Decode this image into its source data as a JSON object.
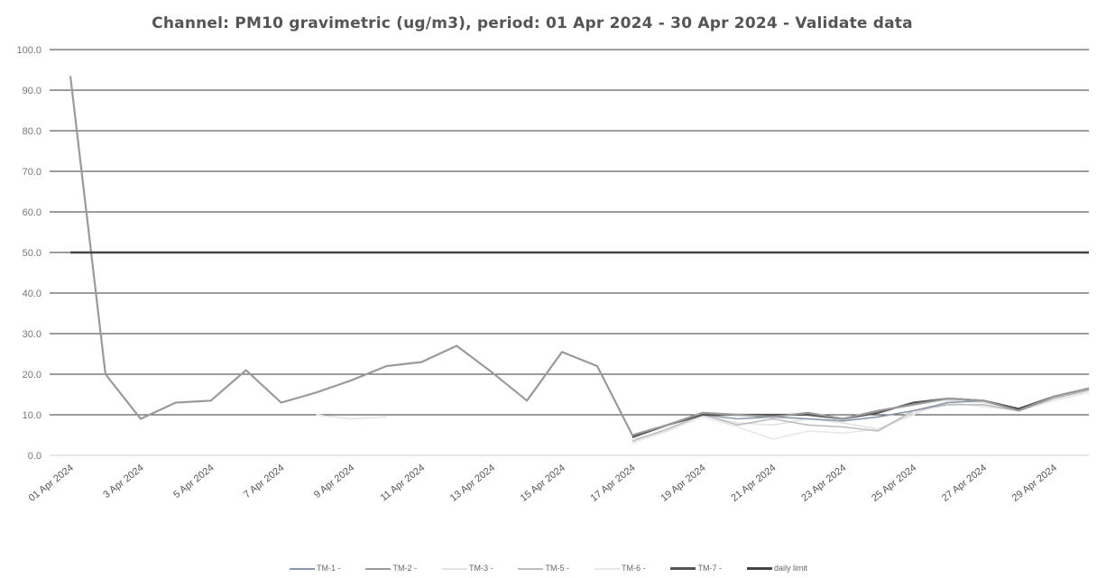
{
  "chart_data": {
    "type": "line",
    "title": "Channel: PM10 gravimetric (ug/m3), period: 01 Apr 2024 - 30 Apr 2024 - Validate data",
    "ylim": [
      0,
      100
    ],
    "yticks": [
      "0.0",
      "10.0",
      "20.0",
      "30.0",
      "40.0",
      "50.0",
      "60.0",
      "70.0",
      "80.0",
      "90.0",
      "100.0"
    ],
    "x": [
      "01 Apr 2024",
      "2 Apr 2024",
      "3 Apr 2024",
      "4 Apr 2024",
      "5 Apr 2024",
      "6 Apr 2024",
      "7 Apr 2024",
      "8 Apr 2024",
      "9 Apr 2024",
      "10 Apr 2024",
      "11 Apr 2024",
      "12 Apr 2024",
      "13 Apr 2024",
      "14 Apr 2024",
      "15 Apr 2024",
      "16 Apr 2024",
      "17 Apr 2024",
      "18 Apr 2024",
      "19 Apr 2024",
      "20 Apr 2024",
      "21 Apr 2024",
      "22 Apr 2024",
      "23 Apr 2024",
      "24 Apr 2024",
      "25 Apr 2024",
      "26 Apr 2024",
      "27 Apr 2024",
      "28 Apr 2024",
      "29 Apr 2024",
      "30 Apr 2024"
    ],
    "xtick_labels": [
      "01 Apr 2024",
      "3 Apr 2024",
      "5 Apr 2024",
      "7 Apr 2024",
      "9 Apr 2024",
      "11 Apr 2024",
      "13 Apr 2024",
      "15 Apr 2024",
      "17 Apr 2024",
      "19 Apr 2024",
      "21 Apr 2024",
      "23 Apr 2024",
      "25 Apr 2024",
      "27 Apr 2024",
      "29 Apr 2024"
    ],
    "grid": true,
    "legend_position": "bottom",
    "series": [
      {
        "name": "TM-1 -",
        "color": "#8a96ad",
        "values": [
          null,
          null,
          null,
          null,
          null,
          null,
          null,
          null,
          null,
          null,
          null,
          null,
          null,
          null,
          null,
          null,
          4.5,
          7.5,
          10.0,
          9.0,
          9.5,
          9.0,
          8.5,
          9.5,
          11.0,
          13.0,
          13.5,
          11.5,
          14.5,
          16.5
        ]
      },
      {
        "name": "TM-2 -",
        "color": "#9a9a9a",
        "values": [
          93.5,
          20.0,
          9.0,
          13.0,
          13.5,
          21.0,
          13.0,
          15.5,
          18.5,
          22.0,
          23.0,
          27.0,
          20.5,
          13.5,
          25.5,
          22.0,
          5.0,
          7.5,
          10.5,
          10.0,
          9.5,
          10.5,
          9.0,
          11.0,
          12.5,
          14.0,
          13.5,
          11.0,
          14.5,
          16.5
        ]
      },
      {
        "name": "TM-3 -",
        "color": "#e3e3e3",
        "values": [
          null,
          null,
          null,
          null,
          null,
          null,
          null,
          10.0,
          9.0,
          9.5,
          null,
          null,
          null,
          null,
          null,
          null,
          4.0,
          6.0,
          10.0,
          8.0,
          7.5,
          9.0,
          8.0,
          6.5,
          10.0,
          13.5,
          13.0,
          11.5,
          14.0,
          16.0
        ]
      },
      {
        "name": "TM-5 -",
        "color": "#bdbdbd",
        "values": [
          null,
          null,
          null,
          null,
          null,
          null,
          null,
          null,
          null,
          null,
          null,
          null,
          null,
          null,
          null,
          null,
          3.5,
          6.5,
          10.0,
          7.5,
          9.0,
          7.5,
          7.0,
          6.0,
          11.0,
          12.5,
          12.5,
          11.0,
          14.0,
          16.0
        ]
      },
      {
        "name": "TM-6 -",
        "color": "#e8e8e8",
        "values": [
          null,
          null,
          null,
          null,
          null,
          null,
          null,
          null,
          null,
          null,
          null,
          null,
          null,
          null,
          null,
          null,
          3.0,
          6.0,
          9.5,
          7.0,
          4.0,
          6.0,
          5.5,
          6.5,
          10.5,
          13.0,
          12.0,
          11.0,
          13.5,
          15.5
        ]
      },
      {
        "name": "TM-7 -",
        "color": "#555555",
        "values": [
          null,
          null,
          null,
          null,
          null,
          null,
          null,
          null,
          null,
          null,
          null,
          null,
          null,
          null,
          null,
          null,
          4.5,
          7.5,
          10.0,
          10.0,
          10.0,
          10.0,
          9.0,
          10.5,
          13.0,
          14.0,
          13.5,
          11.5,
          14.5,
          16.5
        ]
      },
      {
        "name": "daily limit",
        "color": "#444444",
        "values": [
          50,
          50,
          50,
          50,
          50,
          50,
          50,
          50,
          50,
          50,
          50,
          50,
          50,
          50,
          50,
          50,
          50,
          50,
          50,
          50,
          50,
          50,
          50,
          50,
          50,
          50,
          50,
          50,
          50,
          50
        ]
      }
    ]
  }
}
